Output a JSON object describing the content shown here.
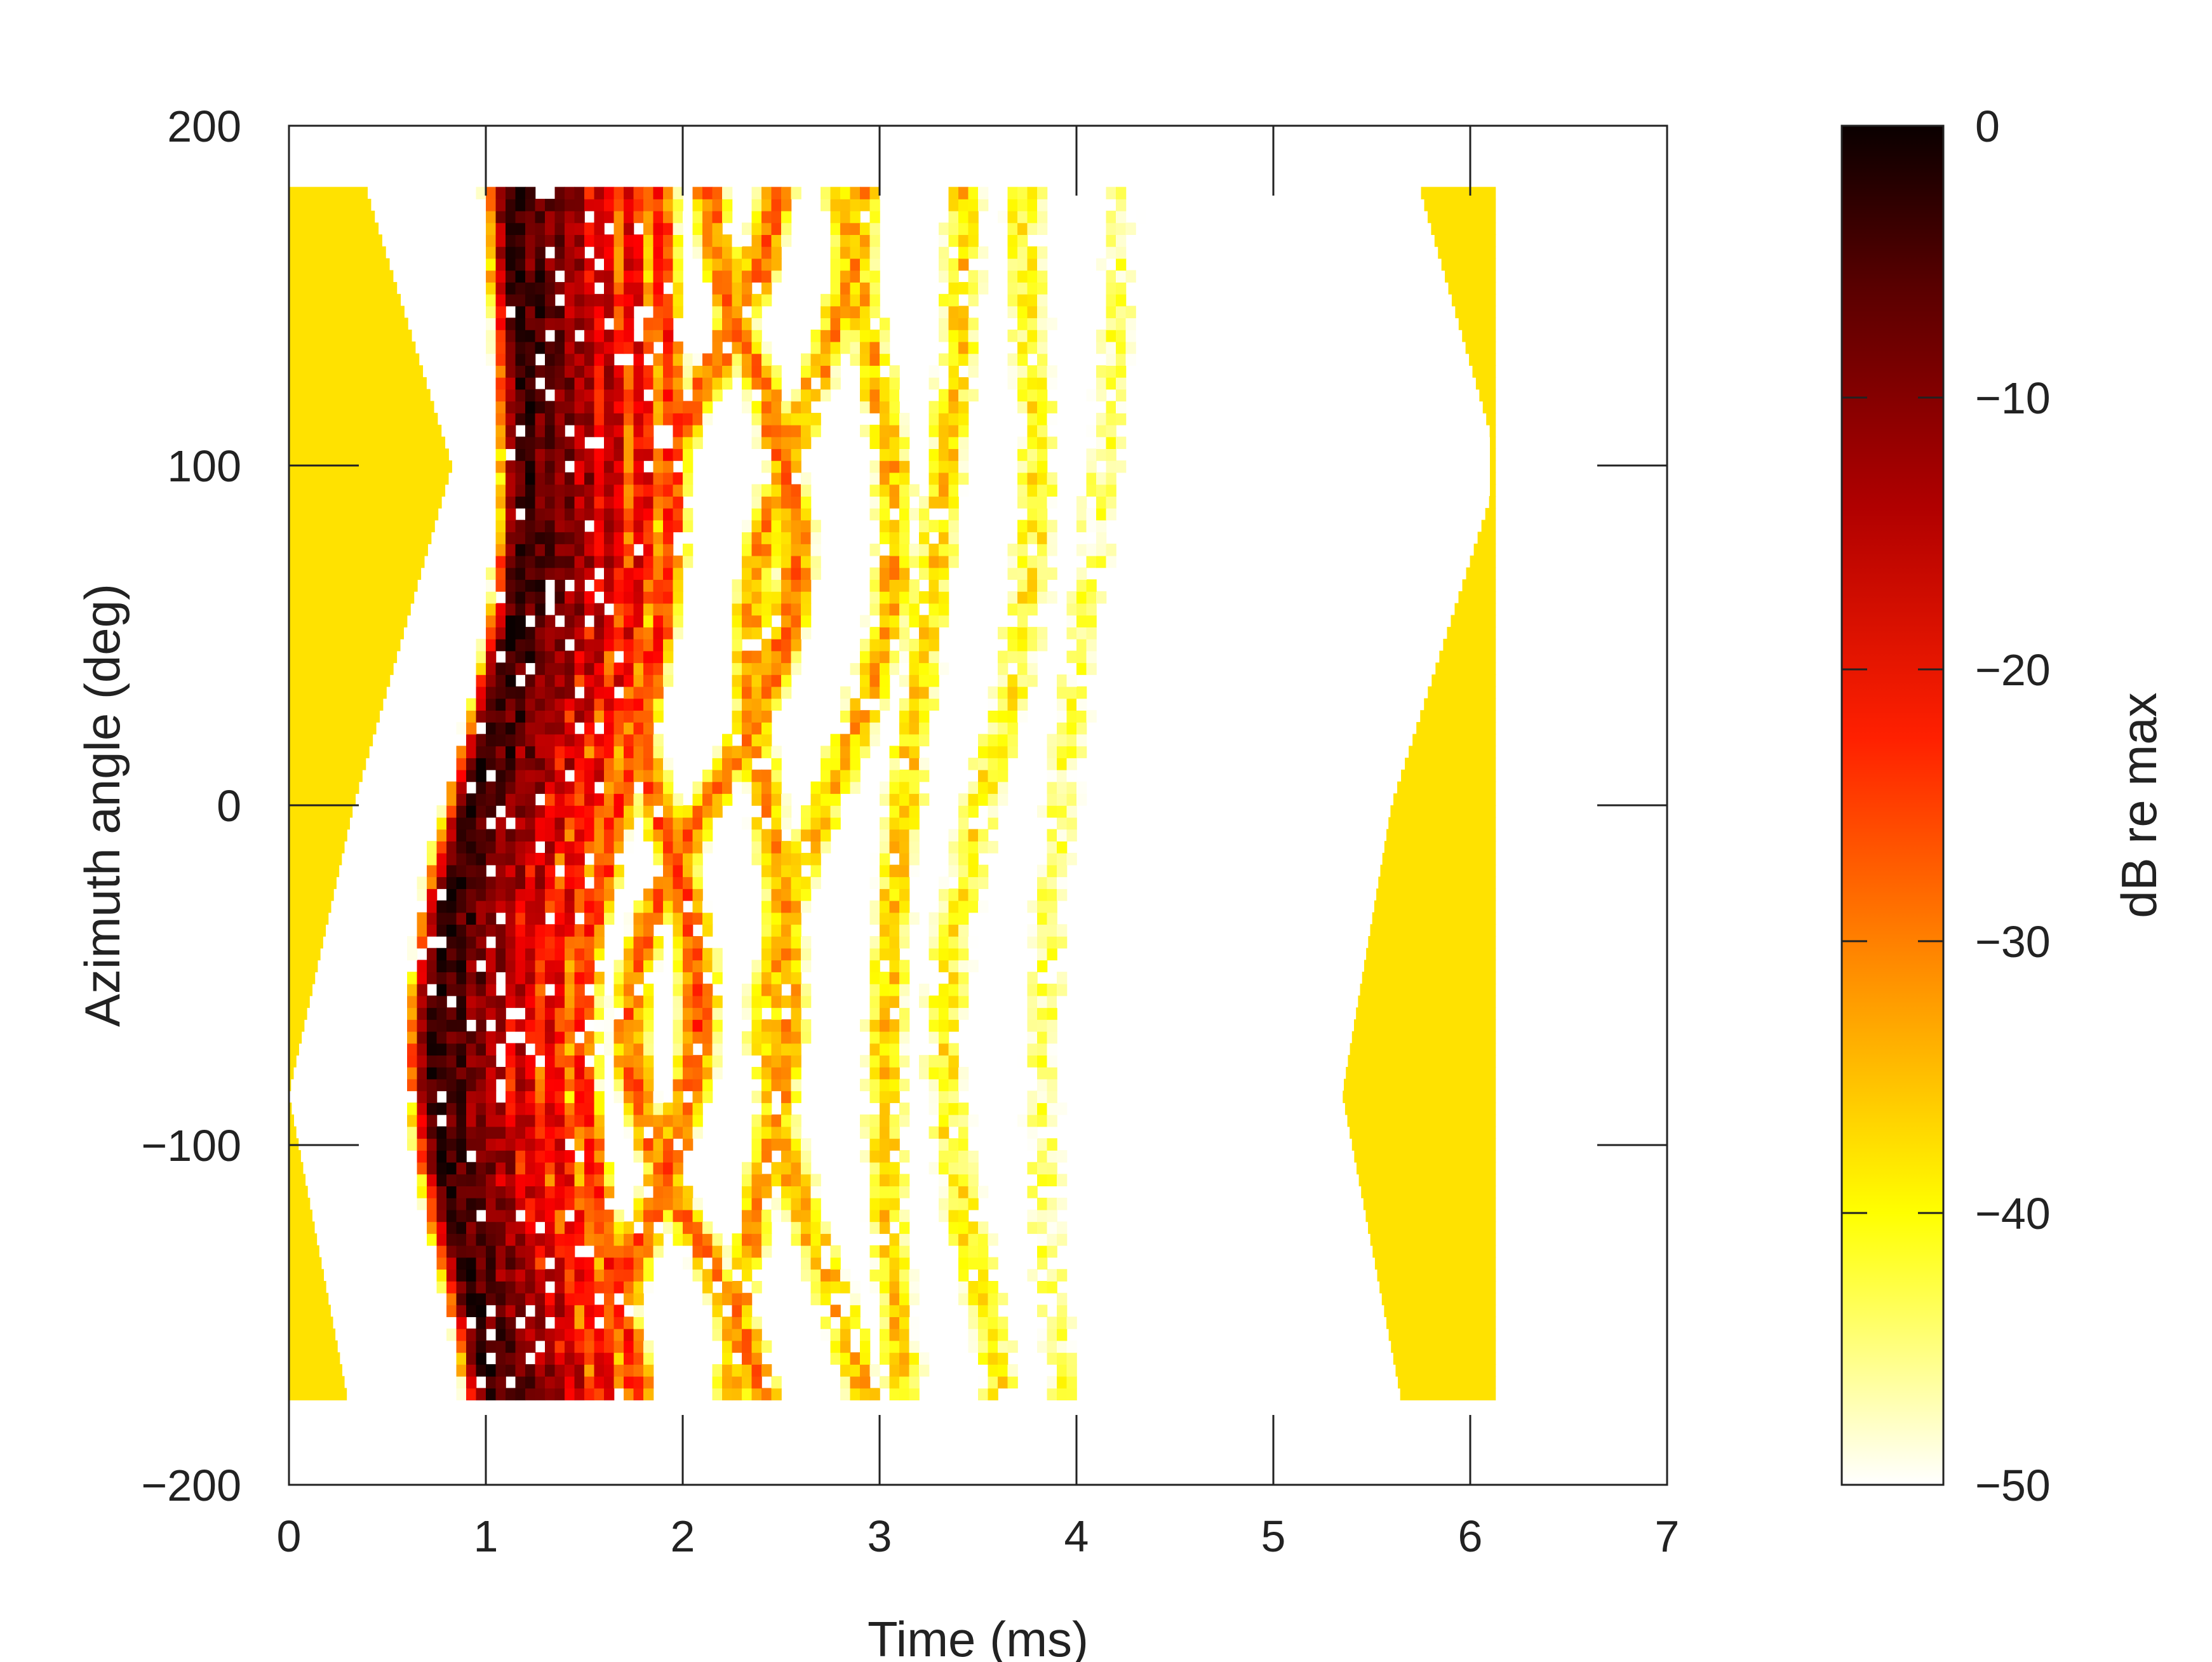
{
  "chart_data": {
    "type": "heatmap",
    "title": "",
    "xlabel": "Time (ms)",
    "ylabel": "Azimuth angle (deg)",
    "xlim": [
      0,
      7
    ],
    "ylim": [
      -200,
      200
    ],
    "x_ticks": [
      0,
      1,
      2,
      3,
      4,
      5,
      6,
      7
    ],
    "y_ticks": [
      -200,
      -100,
      0,
      100,
      200
    ],
    "azimuth_range": [
      -175,
      180
    ],
    "grid": false,
    "colorbar": {
      "label": "dB re max",
      "range": [
        -50,
        0
      ],
      "ticks": [
        0,
        -10,
        -20,
        -30,
        -40,
        -50
      ],
      "colormap": "hot"
    },
    "floor_db": -38,
    "boundary_left": [
      {
        "az": -175,
        "t": 0.3
      },
      {
        "az": -85,
        "t": 0.0
      },
      {
        "az": 0,
        "t": 0.33
      },
      {
        "az": 100,
        "t": 0.83
      },
      {
        "az": 180,
        "t": 0.4
      }
    ],
    "boundary_right": [
      {
        "az": -175,
        "t": 5.65
      },
      {
        "az": -85,
        "t": 5.35
      },
      {
        "az": 0,
        "t": 5.6
      },
      {
        "az": 90,
        "t": 6.1
      },
      {
        "az": 110,
        "t": 6.1
      },
      {
        "az": 180,
        "t": 5.75
      }
    ],
    "arrivals": [
      {
        "t0": 0.82,
        "level_db": -3,
        "width": 0.06,
        "vx": 0.1
      },
      {
        "t0": 0.92,
        "level_db": -5,
        "width": 0.05,
        "vx": 0.1
      },
      {
        "t0": 1.02,
        "level_db": -9,
        "width": 0.05,
        "vx": 0.1
      },
      {
        "t0": 1.12,
        "level_db": -12,
        "width": 0.05,
        "vx": 0.1
      },
      {
        "t0": 1.25,
        "level_db": -16,
        "width": 0.05,
        "vx": 0.1
      },
      {
        "t0": 1.4,
        "level_db": -20,
        "width": 0.05,
        "vx": 0.1
      },
      {
        "t0": 1.55,
        "level_db": -25,
        "width": 0.05,
        "vx": 0.1
      },
      {
        "t0": 1.75,
        "level_db": -28,
        "width": 0.06,
        "vx": -0.3
      },
      {
        "t0": 2.0,
        "level_db": -30,
        "width": 0.06,
        "vx": 0.3
      },
      {
        "t0": 2.3,
        "level_db": -33,
        "width": 0.06,
        "vx": -0.2
      },
      {
        "t0": 2.6,
        "level_db": -35,
        "width": 0.07,
        "vx": 0.2
      },
      {
        "t0": 3.0,
        "level_db": -37,
        "width": 0.07,
        "vx": 0.0
      },
      {
        "t0": 3.4,
        "level_db": -40,
        "width": 0.08,
        "vx": 0.1
      },
      {
        "t0": 3.8,
        "level_db": -44,
        "width": 0.08,
        "vx": 0.0
      }
    ],
    "arrival_curve": {
      "az_vertex": -85,
      "az_apex": 180,
      "delay_ms": 0.4
    }
  }
}
